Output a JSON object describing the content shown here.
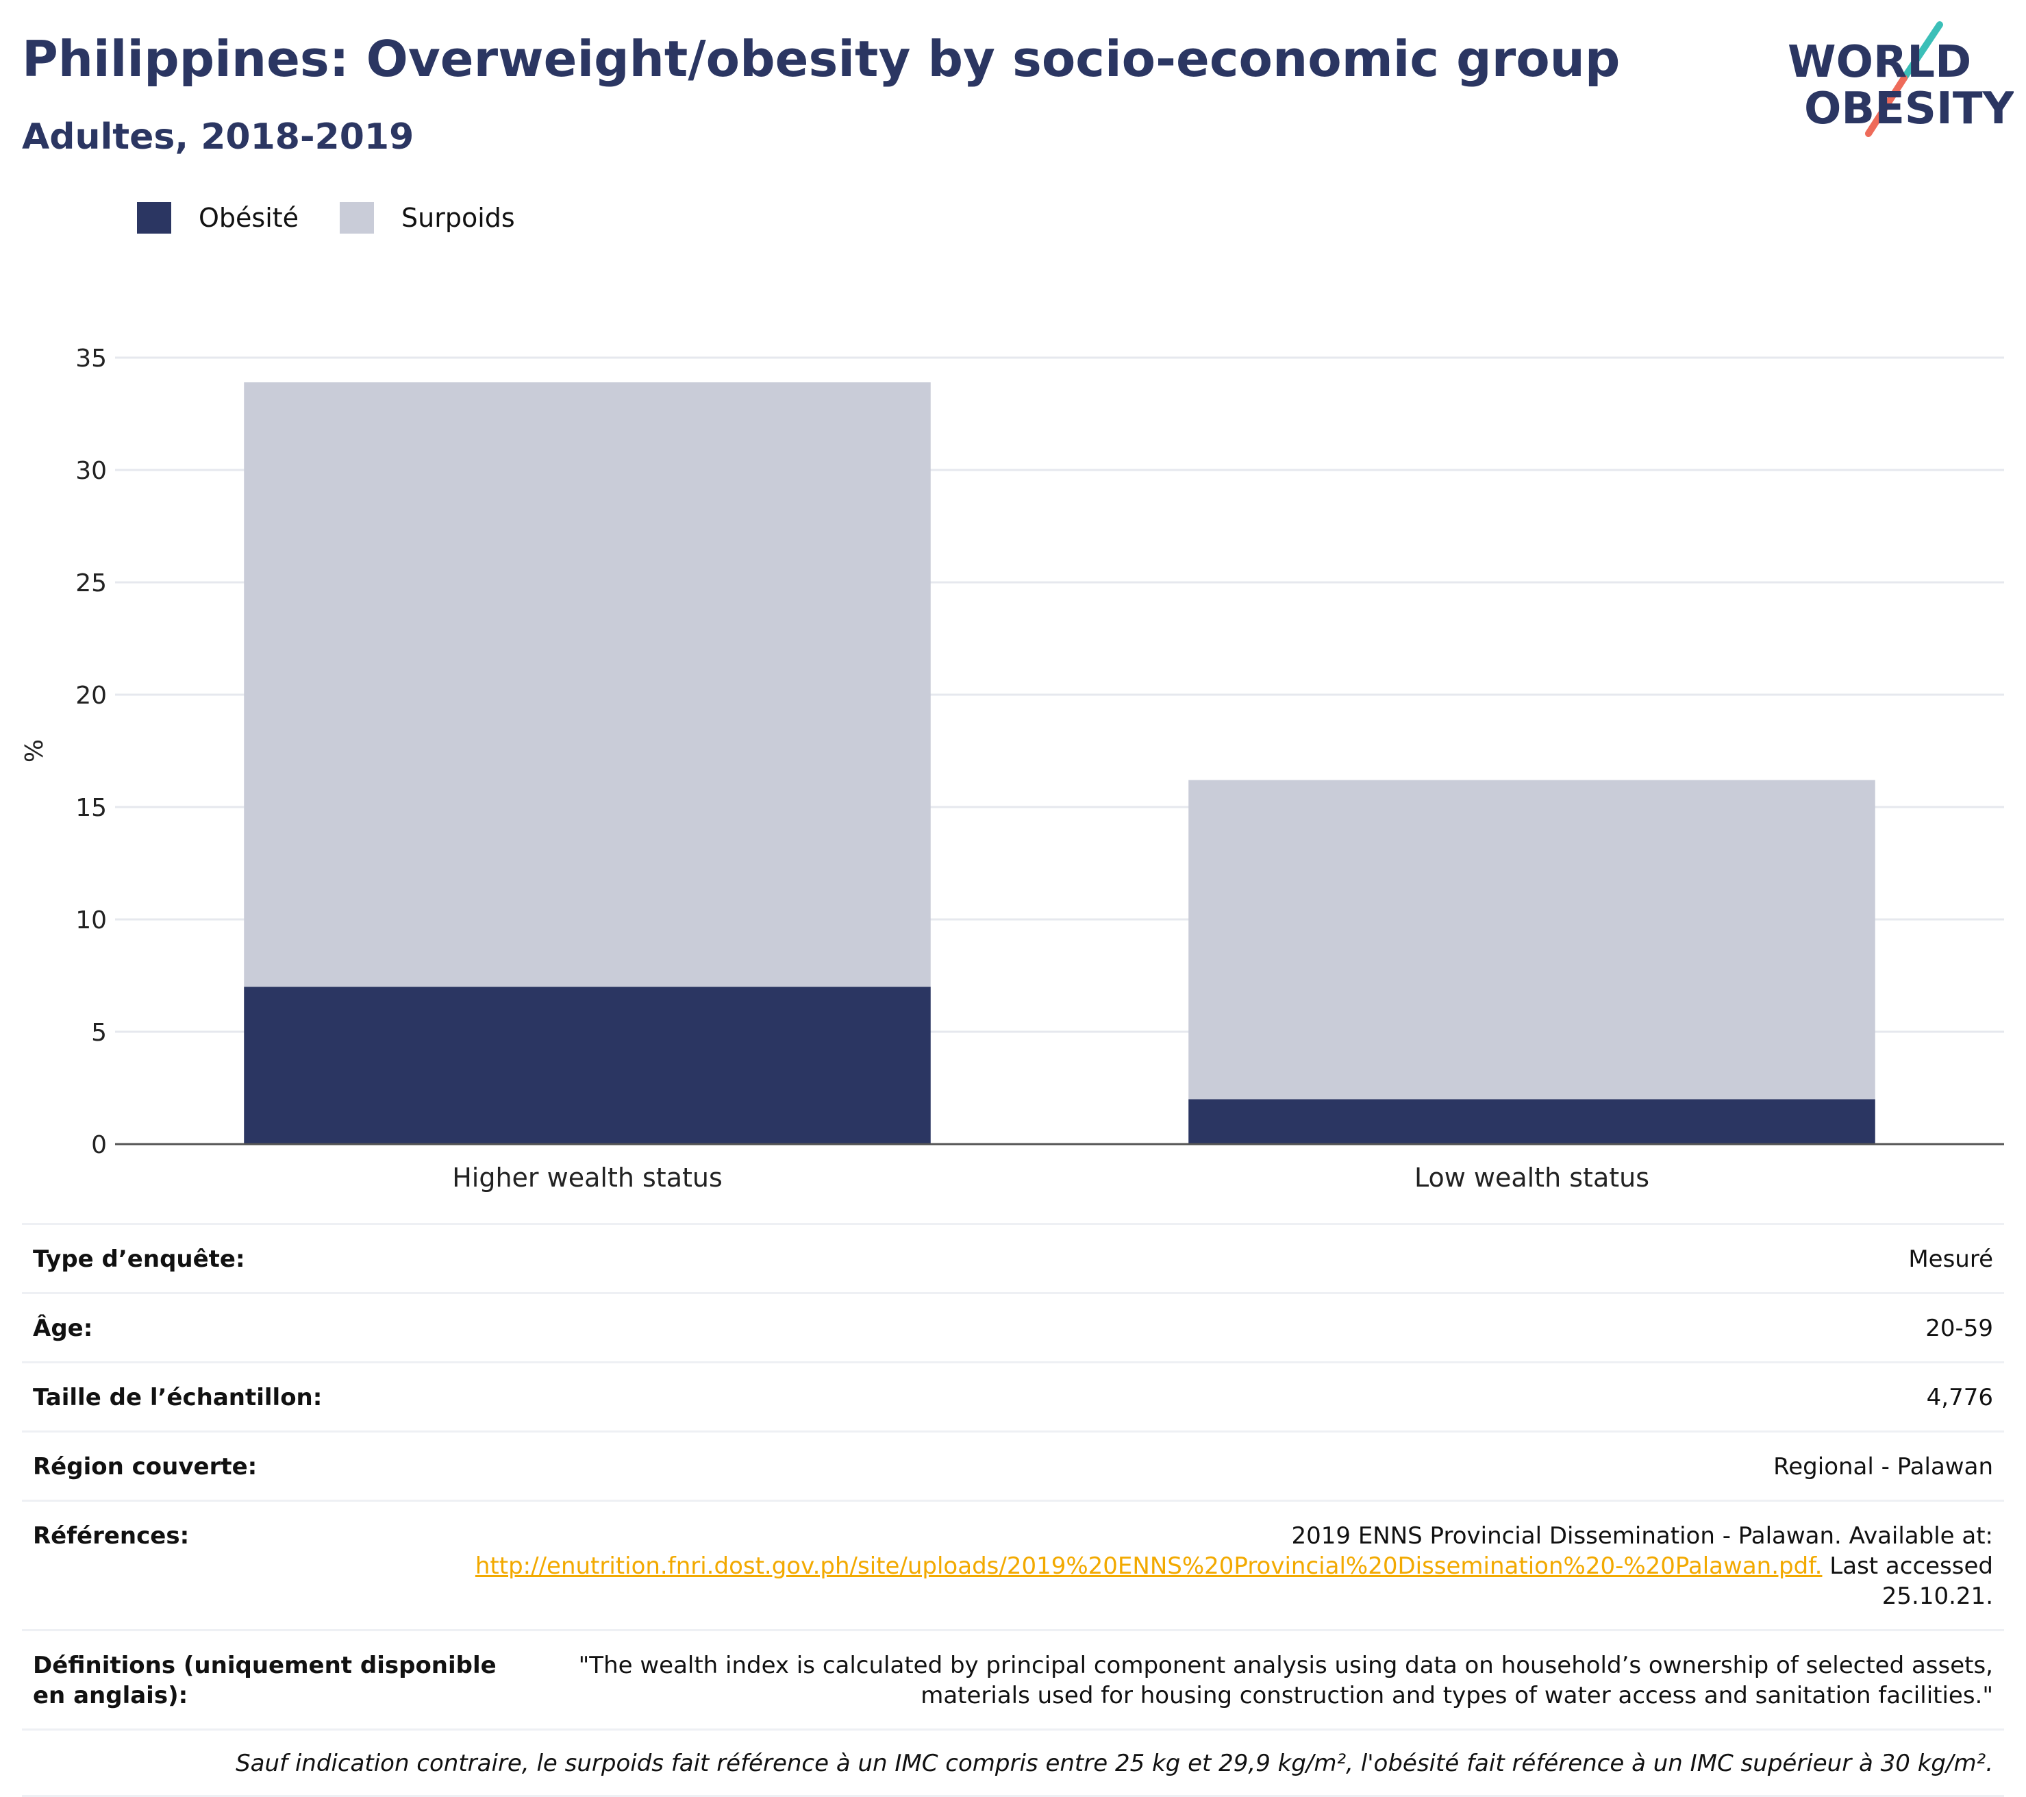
{
  "title": "Philippines: Overweight/obesity by socio-economic group",
  "subtitle": "Adultes, 2018-2019",
  "logo": {
    "line1": "WORLD",
    "line2": "OBESITY"
  },
  "colors": {
    "obesity": "#2b3662",
    "overweight": "#c9ccd8",
    "title": "#2b3662",
    "link": "#f2a900",
    "grid": "#e6e8ee",
    "axis": "#555555"
  },
  "chart_data": {
    "type": "bar",
    "stacked": true,
    "categories": [
      "Higher wealth status",
      "Low wealth status"
    ],
    "series": [
      {
        "name": "Obésité",
        "values": [
          7.0,
          2.0
        ]
      },
      {
        "name": "Surpoids",
        "values": [
          26.9,
          14.2
        ]
      }
    ],
    "ylabel": "%",
    "xlabel": "",
    "ylim": [
      0,
      35
    ],
    "yticks": [
      0,
      5,
      10,
      15,
      20,
      25,
      30,
      35
    ],
    "grid": true,
    "legend_position": "top-left"
  },
  "table": [
    {
      "key": "Type d’enquête:",
      "value": "Mesuré"
    },
    {
      "key": "Âge:",
      "value": "20-59"
    },
    {
      "key": "Taille de l’échantillon:",
      "value": "4,776"
    },
    {
      "key": "Région couverte:",
      "value": "Regional - Palawan"
    }
  ],
  "references": {
    "key": "Références:",
    "line1": "2019 ENNS Provincial Dissemination - Palawan. Available at:",
    "link": "http://enutrition.fnri.dost.gov.ph/site/uploads/2019%20ENNS%20Provincial%20Dissemination%20-%20Palawan.pdf.",
    "after_link": " Last accessed",
    "line3": "25.10.21."
  },
  "definitions": {
    "key": "Définitions (uniquement disponible en anglais):",
    "value": "\"The wealth index is calculated by principal component analysis using data on household’s ownership of selected assets, materials used for housing construction and types of water access and sanitation facilities.\""
  },
  "footnote": "Sauf indication contraire, le surpoids fait référence à un IMC compris entre 25 kg et 29,9 kg/m², l'obésité fait référence à un IMC supérieur à 30 kg/m²."
}
